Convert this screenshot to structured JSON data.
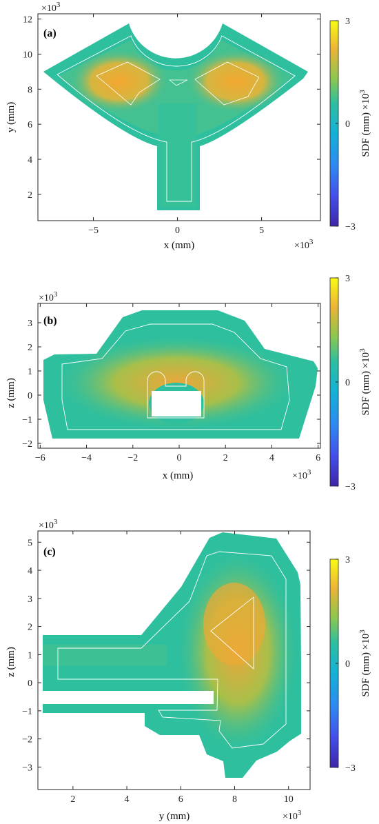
{
  "colorbar_colormap": [
    "#3e26a8",
    "#4450ea",
    "#2d8bf2",
    "#14b0d8",
    "#2ebf9e",
    "#8ec74e",
    "#ebb437",
    "#f9fb15"
  ],
  "contour_color": "#ffffff",
  "colorbar": {
    "label": "SDF (mm) ×10",
    "label_exp": "3",
    "ticks": [
      -3,
      0,
      3
    ],
    "range": [
      -3,
      3
    ]
  },
  "chart_data": [
    {
      "type": "heatmap",
      "panel": "(a)",
      "xlabel": "x (mm)",
      "ylabel": "y (mm)",
      "x_multiplier_base": "×10",
      "x_multiplier_exp": "3",
      "y_multiplier_base": "×10",
      "y_multiplier_exp": "3",
      "xlim": [
        -8.3,
        8.5
      ],
      "ylim": [
        0.5,
        12.3
      ],
      "xticks": [
        -5,
        0,
        5
      ],
      "xticklabels": [
        "−5",
        "0",
        "5"
      ],
      "yticks": [
        2,
        4,
        6,
        8,
        10,
        12
      ],
      "yticklabels": [
        "2",
        "4",
        "6",
        "8",
        "10",
        "12"
      ],
      "color_range": [
        -3,
        3
      ]
    },
    {
      "type": "heatmap",
      "panel": "(b)",
      "xlabel": "x (mm)",
      "ylabel": "z (mm)",
      "x_multiplier_base": "×10",
      "x_multiplier_exp": "3",
      "y_multiplier_base": "×10",
      "y_multiplier_exp": "3",
      "xlim": [
        -6.1,
        6.1
      ],
      "ylim": [
        -2.2,
        3.8
      ],
      "xticks": [
        -6,
        -4,
        -2,
        0,
        2,
        4,
        6
      ],
      "xticklabels": [
        "−6",
        "−4",
        "−2",
        "0",
        "2",
        "4",
        "6"
      ],
      "yticks": [
        -2,
        -1,
        0,
        1,
        2,
        3
      ],
      "yticklabels": [
        "−2",
        "−1",
        "0",
        "1",
        "2",
        "3"
      ],
      "color_range": [
        -3,
        3
      ]
    },
    {
      "type": "heatmap",
      "panel": "(c)",
      "xlabel": "y (mm)",
      "ylabel": "z (mm)",
      "x_multiplier_base": "×10",
      "x_multiplier_exp": "3",
      "y_multiplier_base": "×10",
      "y_multiplier_exp": "3",
      "xlim": [
        0.7,
        10.8
      ],
      "ylim": [
        -3.8,
        5.4
      ],
      "xticks": [
        2,
        4,
        6,
        8,
        10
      ],
      "xticklabels": [
        "2",
        "4",
        "6",
        "8",
        "10"
      ],
      "yticks": [
        -3,
        -2,
        -1,
        0,
        1,
        2,
        3,
        4,
        5
      ],
      "yticklabels": [
        "−3",
        "−2",
        "−1",
        "0",
        "1",
        "2",
        "3",
        "4",
        "5"
      ],
      "color_range": [
        -3,
        3
      ]
    }
  ]
}
